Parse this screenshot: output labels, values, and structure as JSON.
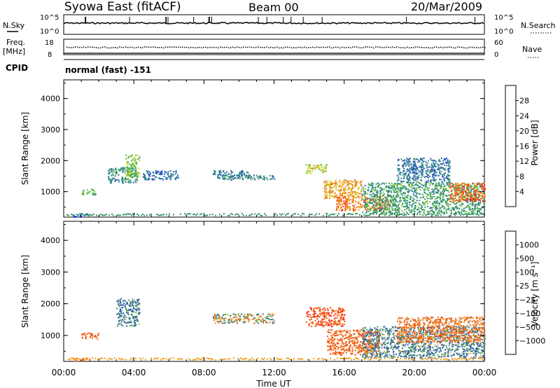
{
  "header": {
    "station": "Syowa East (fitACF)",
    "beam": "Beam 00",
    "date": "20/Mar/2009"
  },
  "top_panels": {
    "nsky_label": "N.Sky",
    "nsky_ticks": [
      "10^5",
      "10^0"
    ],
    "nsearch_label": "N.Search",
    "nsearch_ticks": [
      "10^5",
      "10^0"
    ],
    "freq_label": "Freq.",
    "freq_unit": "[MHz]",
    "freq_ticks": [
      "18",
      "8"
    ],
    "nave_label": "Nave",
    "nave_ticks": [
      "60",
      "0"
    ],
    "cpid_label": "CPID",
    "cpid_value": "normal (fast) -151"
  },
  "colors": {
    "power_scale": [
      "#1a1aff",
      "#2a50c8",
      "#2a7a9a",
      "#3a9a6a",
      "#6ac040",
      "#c8d820",
      "#f0a020",
      "#f07010",
      "#ff2a1a"
    ],
    "velocity_scale": [
      "#1a30e0",
      "#2a5ab0",
      "#3a7a80",
      "#4aa050",
      "#7ad040",
      "#c0c0c0",
      "#f0a020",
      "#f06010",
      "#ff1a1a"
    ]
  },
  "chart_data": [
    {
      "type": "heatmap",
      "ylabel": "Slant Range [km]",
      "xlabel": "",
      "x_ticks": [
        "00:00",
        "04:00",
        "08:00",
        "12:00",
        "16:00",
        "20:00",
        "00:00"
      ],
      "y_ticks": [
        "1000",
        "2000",
        "3000",
        "4000"
      ],
      "ylim": [
        180,
        4600
      ],
      "colorbar_label": "Power [dB]",
      "colorbar_ticks": [
        "4",
        "8",
        "12",
        "16",
        "20",
        "24",
        "28"
      ],
      "colorbar_range": [
        0,
        30
      ],
      "echo_regions": [
        {
          "t": [
            0.4,
            1.5
          ],
          "r": [
            200,
            300
          ],
          "v": 6
        },
        {
          "t": [
            1.0,
            1.8
          ],
          "r": [
            900,
            1100
          ],
          "v": 14
        },
        {
          "t": [
            2.5,
            4.2
          ],
          "r": [
            1300,
            1800
          ],
          "v": 10
        },
        {
          "t": [
            3.5,
            4.3
          ],
          "r": [
            1500,
            2200
          ],
          "v": 16
        },
        {
          "t": [
            4.5,
            6.5
          ],
          "r": [
            1400,
            1700
          ],
          "v": 7
        },
        {
          "t": [
            8.5,
            10.5
          ],
          "r": [
            1450,
            1700
          ],
          "v": 8
        },
        {
          "t": [
            9.0,
            12.0
          ],
          "r": [
            1400,
            1550
          ],
          "v": 10
        },
        {
          "t": [
            13.8,
            15.0
          ],
          "r": [
            1600,
            1900
          ],
          "v": 18
        },
        {
          "t": [
            14.8,
            17.0
          ],
          "r": [
            800,
            1400
          ],
          "v": 22
        },
        {
          "t": [
            15.5,
            18.5
          ],
          "r": [
            400,
            900
          ],
          "v": 24
        },
        {
          "t": [
            17.0,
            24.0
          ],
          "r": [
            300,
            1300
          ],
          "v": 12
        },
        {
          "t": [
            19.0,
            22.0
          ],
          "r": [
            1300,
            2100
          ],
          "v": 8
        },
        {
          "t": [
            22.0,
            24.0
          ],
          "r": [
            700,
            1300
          ],
          "v": 26
        }
      ]
    },
    {
      "type": "heatmap",
      "ylabel": "Slant Range [km]",
      "xlabel": "Time UT",
      "x_ticks": [
        "00:00",
        "04:00",
        "08:00",
        "12:00",
        "16:00",
        "20:00",
        "00:00"
      ],
      "y_ticks": [
        "1000",
        "2000",
        "3000",
        "4000"
      ],
      "ylim": [
        180,
        4600
      ],
      "colorbar_label": "Velocity [m s⁻¹]",
      "colorbar_ticks": [
        "1000",
        "500",
        "100",
        "25",
        "−25",
        "−100",
        "−500",
        "−1000"
      ],
      "echo_regions": [
        {
          "t": [
            0.4,
            1.5
          ],
          "r": [
            200,
            300
          ],
          "v": -200
        },
        {
          "t": [
            1.0,
            2.0
          ],
          "r": [
            900,
            1100
          ],
          "v": -300
        },
        {
          "t": [
            3.0,
            4.3
          ],
          "r": [
            1300,
            2200
          ],
          "v": 200
        },
        {
          "t": [
            8.5,
            12.0
          ],
          "r": [
            1400,
            1700
          ],
          "v": 0
        },
        {
          "t": [
            13.8,
            16.0
          ],
          "r": [
            1300,
            1900
          ],
          "v": -400
        },
        {
          "t": [
            15.0,
            18.0
          ],
          "r": [
            400,
            1200
          ],
          "v": -300
        },
        {
          "t": [
            17.0,
            24.0
          ],
          "r": [
            300,
            1300
          ],
          "v": 150
        },
        {
          "t": [
            19.0,
            24.0
          ],
          "r": [
            800,
            1600
          ],
          "v": -200
        }
      ]
    }
  ]
}
